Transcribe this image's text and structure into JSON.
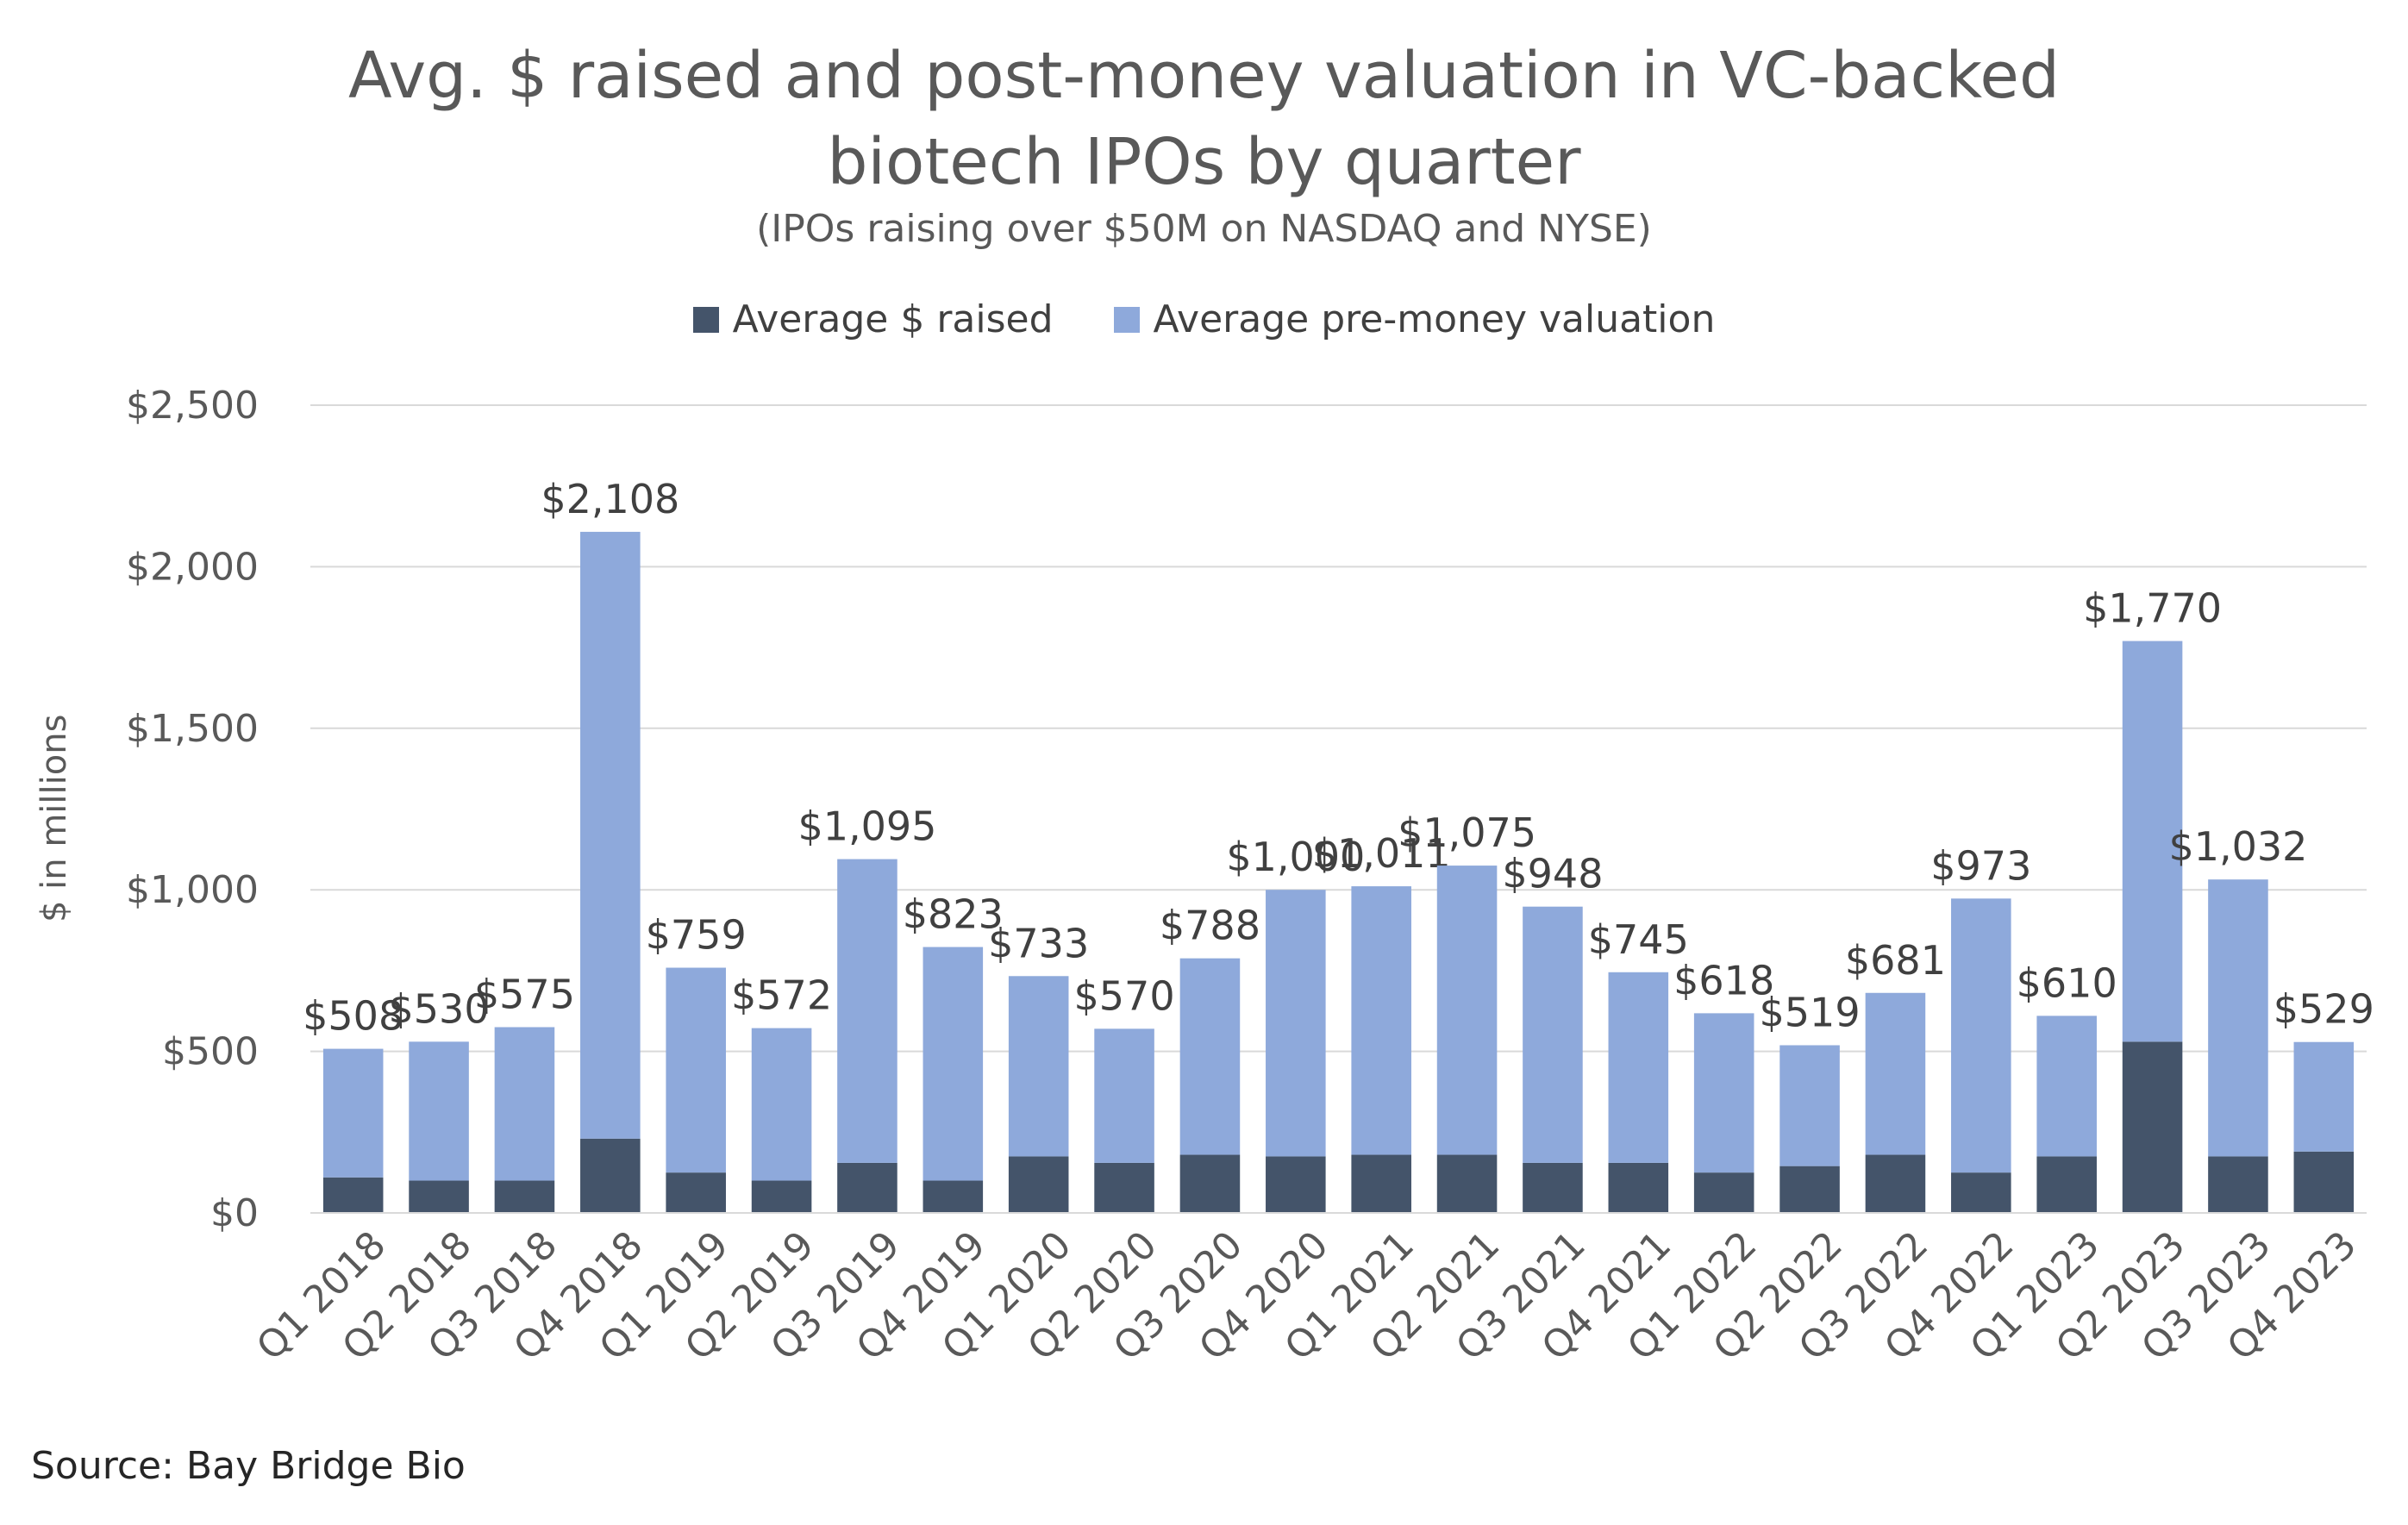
{
  "title_line1": "Avg. $ raised and post-money valuation in VC-backed",
  "title_line2": "biotech IPOs by quarter",
  "subtitle": "(IPOs raising over $50M on NASDAQ and NYSE)",
  "source": "Source: Bay Bridge Bio",
  "colors": {
    "raised": "#44546A",
    "premoney": "#8EA9DB",
    "grid": "#D9D9D9"
  },
  "chart_data": {
    "type": "bar",
    "stacked": true,
    "title": "Avg. $ raised and post-money valuation in VC-backed biotech IPOs by quarter",
    "subtitle": "(IPOs raising over $50M on NASDAQ and NYSE)",
    "ylabel": "$ in millions",
    "xlabel": "",
    "ylim": [
      0,
      2500
    ],
    "yticks": [
      0,
      500,
      1000,
      1500,
      2000,
      2500
    ],
    "ytick_labels": [
      "$0",
      "$500",
      "$1,000",
      "$1,500",
      "$2,000",
      "$2,500"
    ],
    "grid": true,
    "legend": "top-center",
    "categories": [
      "Q1 2018",
      "Q2 2018",
      "Q3 2018",
      "Q4 2018",
      "Q1 2019",
      "Q2 2019",
      "Q3 2019",
      "Q4 2019",
      "Q1 2020",
      "Q2 2020",
      "Q3 2020",
      "Q4 2020",
      "Q1 2021",
      "Q2 2021",
      "Q3 2021",
      "Q4 2021",
      "Q1 2022",
      "Q2 2022",
      "Q3 2022",
      "Q4 2022",
      "Q1 2023",
      "Q2 2023",
      "Q3 2023",
      "Q4 2023"
    ],
    "series": [
      {
        "name": "Average $ raised",
        "values": [
          110,
          100,
          100,
          230,
          125,
          100,
          155,
          100,
          175,
          155,
          180,
          175,
          180,
          180,
          155,
          155,
          125,
          145,
          180,
          125,
          175,
          530,
          175,
          190
        ]
      },
      {
        "name": "Average pre-money valuation",
        "values": [
          398,
          430,
          475,
          1878,
          634,
          472,
          940,
          723,
          558,
          415,
          608,
          825,
          831,
          895,
          793,
          590,
          493,
          374,
          501,
          848,
          435,
          1240,
          857,
          339
        ]
      }
    ],
    "totals": [
      508,
      530,
      575,
      2108,
      759,
      572,
      1095,
      823,
      733,
      570,
      788,
      1000,
      1011,
      1075,
      948,
      745,
      618,
      519,
      681,
      973,
      610,
      1770,
      1032,
      529
    ],
    "total_labels": [
      "$508",
      "$530",
      "$575",
      "$2,108",
      "$759",
      "$572",
      "$1,095",
      "$823",
      "$733",
      "$570",
      "$788",
      "$1,000",
      "$1,011",
      "$1,075",
      "$948",
      "$745",
      "$618",
      "$519",
      "$681",
      "$973",
      "$610",
      "$1,770",
      "$1,032",
      "$529"
    ]
  }
}
